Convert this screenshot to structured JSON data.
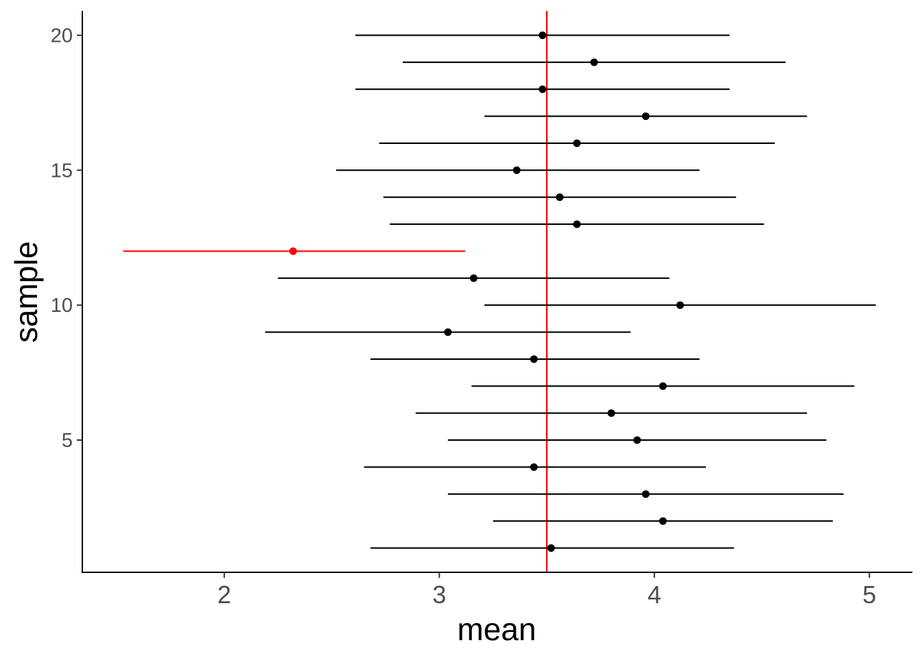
{
  "chart_data": {
    "type": "scatter",
    "subtype": "point-range / confidence intervals",
    "title": "",
    "xlabel": "mean",
    "ylabel": "sample",
    "xlim": [
      1.34,
      5.2
    ],
    "ylim": [
      0.1,
      20.9
    ],
    "x_ticks": [
      2,
      3,
      4,
      5
    ],
    "x_tick_labels": [
      "2",
      "3",
      "4",
      "5"
    ],
    "y_ticks": [
      5,
      10,
      15,
      20
    ],
    "y_tick_labels": [
      "5",
      "10",
      "15",
      "20"
    ],
    "grid": false,
    "reference_line": {
      "x": 3.5,
      "color": "#ff0000"
    },
    "colors": {
      "default": "#000000",
      "highlight": "#ff0000"
    },
    "points": [
      {
        "sample": 1,
        "mean": 3.52,
        "lower": 2.68,
        "upper": 4.37,
        "highlight": false
      },
      {
        "sample": 2,
        "mean": 4.04,
        "lower": 3.25,
        "upper": 4.83,
        "highlight": false
      },
      {
        "sample": 3,
        "mean": 3.96,
        "lower": 3.04,
        "upper": 4.88,
        "highlight": false
      },
      {
        "sample": 4,
        "mean": 3.44,
        "lower": 2.65,
        "upper": 4.24,
        "highlight": false
      },
      {
        "sample": 5,
        "mean": 3.92,
        "lower": 3.04,
        "upper": 4.8,
        "highlight": false
      },
      {
        "sample": 6,
        "mean": 3.8,
        "lower": 2.89,
        "upper": 4.71,
        "highlight": false
      },
      {
        "sample": 7,
        "mean": 4.04,
        "lower": 3.15,
        "upper": 4.93,
        "highlight": false
      },
      {
        "sample": 8,
        "mean": 3.44,
        "lower": 2.68,
        "upper": 4.21,
        "highlight": false
      },
      {
        "sample": 9,
        "mean": 3.04,
        "lower": 2.19,
        "upper": 3.89,
        "highlight": false
      },
      {
        "sample": 10,
        "mean": 4.12,
        "lower": 3.21,
        "upper": 5.03,
        "highlight": false
      },
      {
        "sample": 11,
        "mean": 3.16,
        "lower": 2.25,
        "upper": 4.07,
        "highlight": false
      },
      {
        "sample": 12,
        "mean": 2.32,
        "lower": 1.53,
        "upper": 3.12,
        "highlight": true
      },
      {
        "sample": 13,
        "mean": 3.64,
        "lower": 2.77,
        "upper": 4.51,
        "highlight": false
      },
      {
        "sample": 14,
        "mean": 3.56,
        "lower": 2.74,
        "upper": 4.38,
        "highlight": false
      },
      {
        "sample": 15,
        "mean": 3.36,
        "lower": 2.52,
        "upper": 4.21,
        "highlight": false
      },
      {
        "sample": 16,
        "mean": 3.64,
        "lower": 2.72,
        "upper": 4.56,
        "highlight": false
      },
      {
        "sample": 17,
        "mean": 3.96,
        "lower": 3.21,
        "upper": 4.71,
        "highlight": false
      },
      {
        "sample": 18,
        "mean": 3.48,
        "lower": 2.61,
        "upper": 4.35,
        "highlight": false
      },
      {
        "sample": 19,
        "mean": 3.72,
        "lower": 2.83,
        "upper": 4.61,
        "highlight": false
      },
      {
        "sample": 20,
        "mean": 3.48,
        "lower": 2.61,
        "upper": 4.35,
        "highlight": false
      }
    ]
  }
}
